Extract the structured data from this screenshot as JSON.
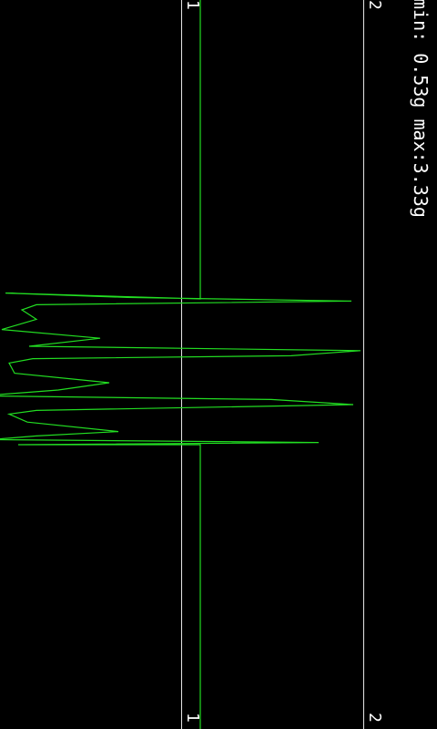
{
  "readout": {
    "min_label": "min:",
    "min_value": "0.53g",
    "max_label": "max:",
    "max_value": "3.33g"
  },
  "ticks": {
    "one": "1",
    "two": "2"
  },
  "colors": {
    "background": "#000000",
    "trace": "#22dd22",
    "guide": "#e6e6e6",
    "text": "#ffffff"
  },
  "chart_data": {
    "type": "line",
    "value_axis": {
      "range": [
        0,
        2
      ],
      "labeled_ticks": [
        1,
        2
      ]
    },
    "series": [
      {
        "points": [
          [
            0,
            1.1
          ],
          [
            0.41,
            1.1
          ],
          [
            0.402,
            0.03
          ],
          [
            0.408,
            0.7
          ],
          [
            0.413,
            1.93
          ],
          [
            0.418,
            0.2
          ],
          [
            0.425,
            0.12
          ],
          [
            0.438,
            0.2
          ],
          [
            0.452,
            0.01
          ],
          [
            0.464,
            0.55
          ],
          [
            0.475,
            0.16
          ],
          [
            0.481,
            1.98
          ],
          [
            0.488,
            1.6
          ],
          [
            0.492,
            0.18
          ],
          [
            0.498,
            0.05
          ],
          [
            0.512,
            0.08
          ],
          [
            0.525,
            0.6
          ],
          [
            0.535,
            0.32
          ],
          [
            0.543,
            -0.1
          ],
          [
            0.548,
            1.49
          ],
          [
            0.555,
            1.94
          ],
          [
            0.563,
            0.2
          ],
          [
            0.568,
            0.05
          ],
          [
            0.579,
            0.15
          ],
          [
            0.592,
            0.65
          ],
          [
            0.598,
            0.2
          ],
          [
            0.603,
            -0.05
          ],
          [
            0.607,
            1.75
          ],
          [
            0.61,
            0.1
          ],
          [
            0.61,
            1.1
          ],
          [
            1.0,
            1.1
          ]
        ]
      }
    ]
  }
}
